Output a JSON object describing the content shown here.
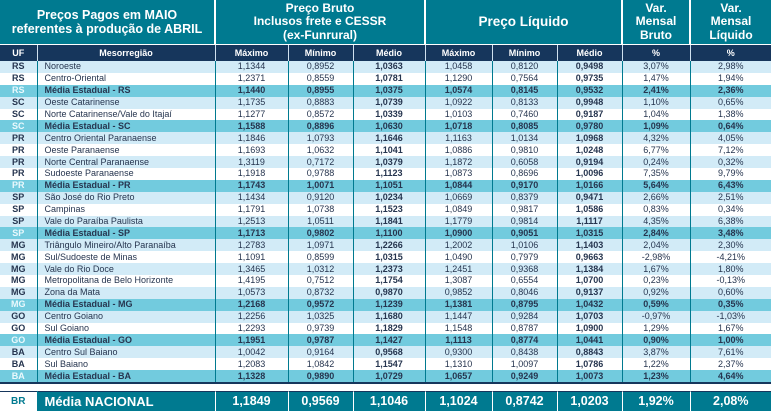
{
  "header": {
    "left_title": "Preços Pagos em MAIO\nreferentes à produção de ABRIL",
    "bruto_title": "Preço Bruto\nInclusos frete e CESSR\n(ex-Funrural)",
    "liquido_title": "Preço Líquido",
    "var_bruto_title": "Var.\nMensal\nBruto",
    "var_liquido_title": "Var.\nMensal\nLíquido",
    "sub_columns": [
      "UF",
      "Mesorregião",
      "Máximo",
      "Mínimo",
      "Médio",
      "Máximo",
      "Mínimo",
      "Médio",
      "%",
      "%"
    ]
  },
  "chart_data": {
    "type": "table",
    "columns": [
      "UF",
      "Mesorregião",
      "Preço Bruto Máximo",
      "Preço Bruto Mínimo",
      "Preço Bruto Médio",
      "Preço Líquido Máximo",
      "Preço Líquido Mínimo",
      "Preço Líquido Médio",
      "Var. Mensal Bruto %",
      "Var. Mensal Líquido %"
    ],
    "rows": [
      {
        "uf": "RS",
        "region": "Noroeste",
        "is_state_avg": false,
        "values": [
          "1,1344",
          "0,8952",
          "1,0363",
          "1,0458",
          "0,8120",
          "0,9498",
          "3,07%",
          "2,98%"
        ]
      },
      {
        "uf": "RS",
        "region": "Centro-Oriental",
        "is_state_avg": false,
        "values": [
          "1,2371",
          "0,8559",
          "1,0781",
          "1,1290",
          "0,7564",
          "0,9735",
          "1,47%",
          "1,94%"
        ]
      },
      {
        "uf": "RS",
        "region": "Média Estadual - RS",
        "is_state_avg": true,
        "values": [
          "1,1440",
          "0,8955",
          "1,0375",
          "1,0574",
          "0,8145",
          "0,9532",
          "2,41%",
          "2,36%"
        ]
      },
      {
        "uf": "SC",
        "region": "Oeste Catarinense",
        "is_state_avg": false,
        "values": [
          "1,1735",
          "0,8883",
          "1,0739",
          "1,0922",
          "0,8133",
          "0,9948",
          "1,10%",
          "0,65%"
        ]
      },
      {
        "uf": "SC",
        "region": "Norte Catarinense/Vale do Itajaí",
        "is_state_avg": false,
        "values": [
          "1,1277",
          "0,8572",
          "1,0339",
          "1,0103",
          "0,7460",
          "0,9187",
          "1,04%",
          "1,38%"
        ]
      },
      {
        "uf": "SC",
        "region": "Média Estadual - SC",
        "is_state_avg": true,
        "values": [
          "1,1588",
          "0,8896",
          "1,0630",
          "1,0718",
          "0,8085",
          "0,9780",
          "1,09%",
          "0,64%"
        ]
      },
      {
        "uf": "PR",
        "region": "Centro Oriental Paranaense",
        "is_state_avg": false,
        "values": [
          "1,1846",
          "1,0793",
          "1,1646",
          "1,1163",
          "1,0134",
          "1,0968",
          "4,32%",
          "4,05%"
        ]
      },
      {
        "uf": "PR",
        "region": "Oeste Paranaense",
        "is_state_avg": false,
        "values": [
          "1,1693",
          "1,0632",
          "1,1041",
          "1,0886",
          "0,9810",
          "1,0248",
          "6,77%",
          "7,12%"
        ]
      },
      {
        "uf": "PR",
        "region": "Norte Central Paranaense",
        "is_state_avg": false,
        "values": [
          "1,3119",
          "0,7172",
          "1,0379",
          "1,1872",
          "0,6058",
          "0,9194",
          "0,24%",
          "0,32%"
        ]
      },
      {
        "uf": "PR",
        "region": "Sudoeste Paranaense",
        "is_state_avg": false,
        "values": [
          "1,1918",
          "0,9788",
          "1,1123",
          "1,0873",
          "0,8696",
          "1,0096",
          "7,35%",
          "9,79%"
        ]
      },
      {
        "uf": "PR",
        "region": "Média Estadual - PR",
        "is_state_avg": true,
        "values": [
          "1,1743",
          "1,0071",
          "1,1051",
          "1,0844",
          "0,9170",
          "1,0166",
          "5,64%",
          "6,43%"
        ]
      },
      {
        "uf": "SP",
        "region": "São José do Rio Preto",
        "is_state_avg": false,
        "values": [
          "1,1434",
          "0,9120",
          "1,0234",
          "1,0669",
          "0,8379",
          "0,9471",
          "2,66%",
          "2,51%"
        ]
      },
      {
        "uf": "SP",
        "region": "Campinas",
        "is_state_avg": false,
        "values": [
          "1,1791",
          "1,0738",
          "1,1523",
          "1,0849",
          "0,9817",
          "1,0586",
          "0,83%",
          "0,34%"
        ]
      },
      {
        "uf": "SP",
        "region": "Vale do Paraíba Paulista",
        "is_state_avg": false,
        "values": [
          "1,2513",
          "1,0511",
          "1,1841",
          "1,1779",
          "0,9814",
          "1,1117",
          "4,35%",
          "6,38%"
        ]
      },
      {
        "uf": "SP",
        "region": "Média Estadual - SP",
        "is_state_avg": true,
        "values": [
          "1,1713",
          "0,9802",
          "1,1100",
          "1,0900",
          "0,9051",
          "1,0315",
          "2,84%",
          "3,48%"
        ]
      },
      {
        "uf": "MG",
        "region": "Triângulo Mineiro/Alto Paranaíba",
        "is_state_avg": false,
        "values": [
          "1,2783",
          "1,0971",
          "1,2266",
          "1,2002",
          "1,0106",
          "1,1403",
          "2,04%",
          "2,30%"
        ]
      },
      {
        "uf": "MG",
        "region": "Sul/Sudoeste de Minas",
        "is_state_avg": false,
        "values": [
          "1,1091",
          "0,8599",
          "1,0315",
          "1,0490",
          "0,7979",
          "0,9663",
          "-2,98%",
          "-4,21%"
        ]
      },
      {
        "uf": "MG",
        "region": "Vale do Rio Doce",
        "is_state_avg": false,
        "values": [
          "1,3465",
          "1,0312",
          "1,2373",
          "1,2451",
          "0,9368",
          "1,1384",
          "1,67%",
          "1,80%"
        ]
      },
      {
        "uf": "MG",
        "region": "Metropolitana de Belo Horizonte",
        "is_state_avg": false,
        "values": [
          "1,4195",
          "0,7512",
          "1,1754",
          "1,3087",
          "0,6554",
          "1,0700",
          "0,23%",
          "-0,13%"
        ]
      },
      {
        "uf": "MG",
        "region": "Zona da Mata",
        "is_state_avg": false,
        "values": [
          "1,0573",
          "0,8732",
          "0,9870",
          "0,9852",
          "0,8046",
          "0,9137",
          "0,92%",
          "0,60%"
        ]
      },
      {
        "uf": "MG",
        "region": "Média Estadual - MG",
        "is_state_avg": true,
        "values": [
          "1,2168",
          "0,9572",
          "1,1239",
          "1,1381",
          "0,8795",
          "1,0432",
          "0,59%",
          "0,35%"
        ]
      },
      {
        "uf": "GO",
        "region": "Centro Goiano",
        "is_state_avg": false,
        "values": [
          "1,2256",
          "1,0325",
          "1,1680",
          "1,1447",
          "0,9284",
          "1,0703",
          "-0,97%",
          "-1,03%"
        ]
      },
      {
        "uf": "GO",
        "region": "Sul Goiano",
        "is_state_avg": false,
        "values": [
          "1,2293",
          "0,9739",
          "1,1829",
          "1,1548",
          "0,8787",
          "1,0900",
          "1,29%",
          "1,67%"
        ]
      },
      {
        "uf": "GO",
        "region": "Média Estadual - GO",
        "is_state_avg": true,
        "values": [
          "1,1951",
          "0,9787",
          "1,1427",
          "1,1113",
          "0,8774",
          "1,0441",
          "0,90%",
          "1,00%"
        ]
      },
      {
        "uf": "BA",
        "region": "Centro Sul Baiano",
        "is_state_avg": false,
        "values": [
          "1,0042",
          "0,9164",
          "0,9568",
          "0,9300",
          "0,8438",
          "0,8843",
          "3,87%",
          "7,61%"
        ]
      },
      {
        "uf": "BA",
        "region": "Sul Baiano",
        "is_state_avg": false,
        "values": [
          "1,2083",
          "1,0842",
          "1,1547",
          "1,1310",
          "1,0097",
          "1,0786",
          "1,22%",
          "2,37%"
        ]
      },
      {
        "uf": "BA",
        "region": "Média Estadual - BA",
        "is_state_avg": true,
        "values": [
          "1,1328",
          "0,9890",
          "1,0729",
          "1,0657",
          "0,9249",
          "1,0073",
          "1,23%",
          "4,64%"
        ]
      }
    ]
  },
  "footer": {
    "uf": "BR",
    "label": "Média NACIONAL",
    "values": [
      "1,1849",
      "0,9569",
      "1,1046",
      "1,1024",
      "0,8742",
      "1,0203",
      "1,92%",
      "2,08%"
    ]
  },
  "colors": {
    "teal": "#007A90",
    "navy": "#16365C",
    "stripe_light_blue": "#D2EBF7",
    "state_average_cyan": "#72CBDE",
    "body_text": "#26354F"
  }
}
